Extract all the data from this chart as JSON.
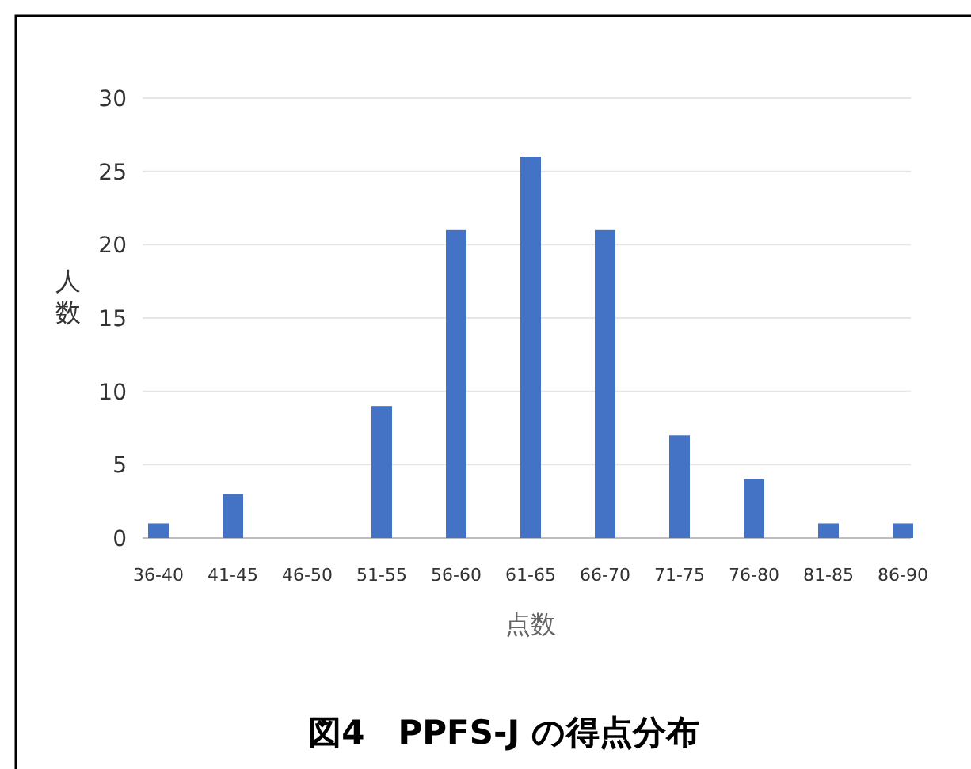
{
  "chart_data": {
    "type": "bar",
    "title": "図4　PPFS-J の得点分布",
    "xlabel": "点数",
    "ylabel": "人数",
    "categories": [
      "36-40",
      "41-45",
      "46-50",
      "51-55",
      "56-60",
      "61-65",
      "66-70",
      "71-75",
      "76-80",
      "81-85",
      "86-90"
    ],
    "values": [
      1,
      3,
      0,
      9,
      21,
      26,
      21,
      7,
      4,
      1,
      1
    ],
    "color": "#4472c4",
    "ylim": [
      0,
      30
    ],
    "yticks": [
      0,
      5,
      10,
      15,
      20,
      25,
      30
    ],
    "grid": "y"
  }
}
